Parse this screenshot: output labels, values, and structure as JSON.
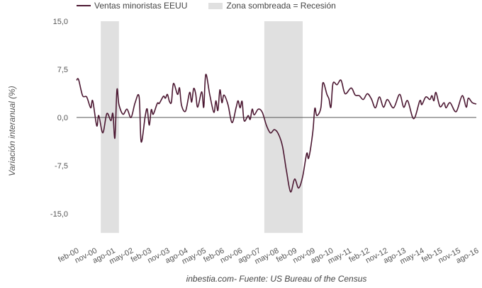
{
  "chart_data": {
    "type": "line",
    "ylabel": "Variación interanual (%)",
    "source": "inbestia.com- Fuente: US Bureau of the Census",
    "ylim": [
      -18,
      15
    ],
    "xlim": [
      "2000-02",
      "2016-08"
    ],
    "yticks": [
      15,
      7.5,
      0,
      -7.5,
      -15
    ],
    "ytick_labels": [
      "15,0",
      "7,5",
      "0,0",
      "-7,5",
      "-15,0"
    ],
    "xtick_dates": [
      "2000-02",
      "2000-11",
      "2001-08",
      "2002-05",
      "2003-02",
      "2003-11",
      "2004-08",
      "2005-05",
      "2006-02",
      "2006-11",
      "2007-08",
      "2008-05",
      "2009-02",
      "2009-11",
      "2010-08",
      "2011-05",
      "2012-02",
      "2012-11",
      "2013-08",
      "2014-05",
      "2015-02",
      "2015-11",
      "2016-08"
    ],
    "xtick_labels": [
      "feb-00",
      "nov-00",
      "ago-01",
      "may-02",
      "feb-03",
      "nov-03",
      "ago-04",
      "may-05",
      "feb-06",
      "nov-06",
      "ago-07",
      "may-08",
      "feb-09",
      "nov-09",
      "ago-10",
      "may-11",
      "feb-12",
      "nov-12",
      "ago-13",
      "may-14",
      "feb-15",
      "nov-15",
      "ago-16"
    ],
    "grid": false,
    "zero_line": true,
    "legend_placement": "top-left",
    "legend": [
      {
        "label": "Ventas minoristas EEUU",
        "kind": "line",
        "color": "#4b1731"
      },
      {
        "label": "Zona sombreada = Recesión",
        "kind": "box",
        "color": "#e0e0e0"
      }
    ],
    "recessions": [
      {
        "start": "2001-02",
        "end": "2001-11"
      },
      {
        "start": "2007-11",
        "end": "2009-06"
      }
    ],
    "series": [
      {
        "name": "Ventas minoristas EEUU",
        "color": "#4b1731",
        "points": [
          [
            "2000-02",
            5.8
          ],
          [
            "2000-03",
            5.9
          ],
          [
            "2000-05",
            3.4
          ],
          [
            "2000-07",
            3.2
          ],
          [
            "2000-09",
            1.5
          ],
          [
            "2000-10",
            2.6
          ],
          [
            "2000-12",
            -1.3
          ],
          [
            "2001-01",
            0.3
          ],
          [
            "2001-03",
            -2.4
          ],
          [
            "2001-05",
            0.6
          ],
          [
            "2001-07",
            -0.5
          ],
          [
            "2001-08",
            0.6
          ],
          [
            "2001-09",
            -3.2
          ],
          [
            "2001-10",
            4.3
          ],
          [
            "2001-11",
            2.0
          ],
          [
            "2002-01",
            0.5
          ],
          [
            "2002-03",
            1.3
          ],
          [
            "2002-05",
            0.0
          ],
          [
            "2002-07",
            2.3
          ],
          [
            "2002-09",
            3.2
          ],
          [
            "2002-10",
            -3.8
          ],
          [
            "2002-12",
            0.2
          ],
          [
            "2003-01",
            1.3
          ],
          [
            "2003-02",
            -1.2
          ],
          [
            "2003-03",
            1.2
          ],
          [
            "2003-04",
            0.5
          ],
          [
            "2003-06",
            2.2
          ],
          [
            "2003-07",
            2.2
          ],
          [
            "2003-09",
            3.3
          ],
          [
            "2003-10",
            3.0
          ],
          [
            "2003-11",
            3.6
          ],
          [
            "2003-12",
            2.5
          ],
          [
            "2004-01",
            2.4
          ],
          [
            "2004-02",
            5.3
          ],
          [
            "2004-04",
            3.6
          ],
          [
            "2004-05",
            4.6
          ],
          [
            "2004-06",
            1.9
          ],
          [
            "2004-08",
            1.0
          ],
          [
            "2004-10",
            3.9
          ],
          [
            "2004-11",
            2.4
          ],
          [
            "2004-12",
            4.5
          ],
          [
            "2005-01",
            3.7
          ],
          [
            "2005-02",
            1.6
          ],
          [
            "2005-04",
            4.0
          ],
          [
            "2005-05",
            1.6
          ],
          [
            "2005-06",
            6.7
          ],
          [
            "2005-08",
            3.5
          ],
          [
            "2005-10",
            0.8
          ],
          [
            "2005-11",
            2.6
          ],
          [
            "2005-12",
            1.1
          ],
          [
            "2006-01",
            4.3
          ],
          [
            "2006-02",
            2.3
          ],
          [
            "2006-03",
            3.5
          ],
          [
            "2006-05",
            2.0
          ],
          [
            "2006-07",
            -0.8
          ],
          [
            "2006-09",
            1.5
          ],
          [
            "2006-10",
            2.6
          ],
          [
            "2006-11",
            1.5
          ],
          [
            "2006-12",
            2.5
          ],
          [
            "2007-01",
            -0.5
          ],
          [
            "2007-03",
            0.3
          ],
          [
            "2007-04",
            -0.3
          ],
          [
            "2007-05",
            1.3
          ],
          [
            "2007-06",
            0.4
          ],
          [
            "2007-08",
            1.3
          ],
          [
            "2007-10",
            0.8
          ],
          [
            "2007-12",
            -1.2
          ],
          [
            "2008-02",
            -2.4
          ],
          [
            "2008-04",
            -1.9
          ],
          [
            "2008-06",
            -2.6
          ],
          [
            "2008-08",
            -4.5
          ],
          [
            "2008-10",
            -8.4
          ],
          [
            "2008-12",
            -11.6
          ],
          [
            "2009-02",
            -9.6
          ],
          [
            "2009-04",
            -11.0
          ],
          [
            "2009-06",
            -9.2
          ],
          [
            "2009-08",
            -5.6
          ],
          [
            "2009-09",
            -6.3
          ],
          [
            "2009-11",
            -2.3
          ],
          [
            "2009-12",
            1.4
          ],
          [
            "2010-01",
            0.3
          ],
          [
            "2010-03",
            1.5
          ],
          [
            "2010-04",
            5.4
          ],
          [
            "2010-06",
            3.6
          ],
          [
            "2010-07",
            2.9
          ],
          [
            "2010-08",
            1.6
          ],
          [
            "2010-09",
            5.3
          ],
          [
            "2010-11",
            5.1
          ],
          [
            "2011-01",
            5.8
          ],
          [
            "2011-03",
            3.7
          ],
          [
            "2011-06",
            4.6
          ],
          [
            "2011-08",
            3.5
          ],
          [
            "2011-10",
            3.4
          ],
          [
            "2011-12",
            2.8
          ],
          [
            "2012-02",
            3.7
          ],
          [
            "2012-04",
            2.9
          ],
          [
            "2012-06",
            1.5
          ],
          [
            "2012-08",
            3.2
          ],
          [
            "2012-10",
            1.6
          ],
          [
            "2012-12",
            2.8
          ],
          [
            "2013-03",
            1.5
          ],
          [
            "2013-06",
            3.6
          ],
          [
            "2013-08",
            1.6
          ],
          [
            "2013-10",
            2.6
          ],
          [
            "2014-01",
            -0.2
          ],
          [
            "2014-04",
            2.6
          ],
          [
            "2014-05",
            2.0
          ],
          [
            "2014-07",
            3.2
          ],
          [
            "2014-09",
            2.8
          ],
          [
            "2014-10",
            3.4
          ],
          [
            "2014-11",
            2.6
          ],
          [
            "2014-12",
            3.9
          ],
          [
            "2015-02",
            1.7
          ],
          [
            "2015-04",
            2.3
          ],
          [
            "2015-05",
            1.5
          ],
          [
            "2015-07",
            2.3
          ],
          [
            "2015-10",
            0.9
          ],
          [
            "2016-01",
            3.4
          ],
          [
            "2016-03",
            1.6
          ],
          [
            "2016-04",
            3.0
          ],
          [
            "2016-06",
            2.3
          ],
          [
            "2016-08",
            2.1
          ]
        ]
      }
    ]
  }
}
